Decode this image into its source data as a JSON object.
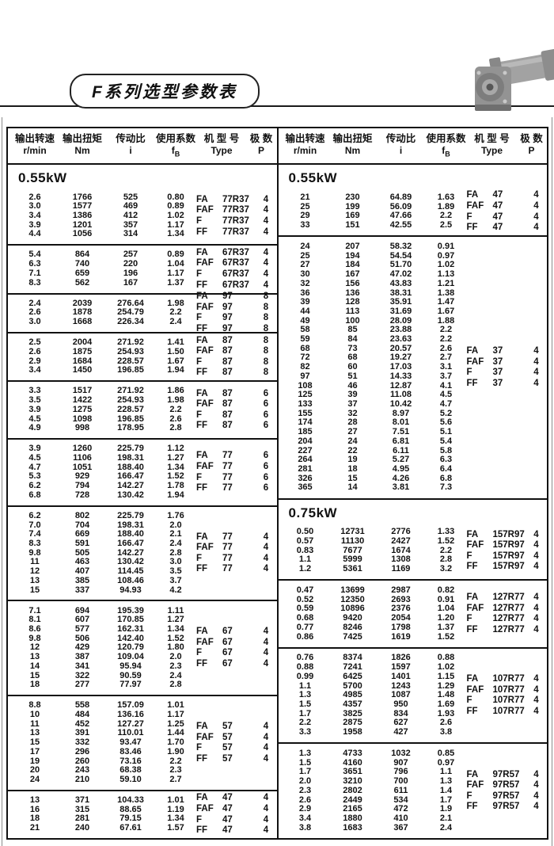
{
  "page": {
    "title": "F系列选型参数表"
  },
  "table": {
    "headers": [
      {
        "zh": "输出转速",
        "unit": "r/min"
      },
      {
        "zh": "输出扭矩",
        "unit": "Nm"
      },
      {
        "zh": "传动比",
        "unit": "i"
      },
      {
        "zh": "使用系数",
        "unit": "f",
        "sub": "B"
      },
      {
        "zh": "机 型 号",
        "unit": "Type"
      },
      {
        "zh": "极 数",
        "unit": "P"
      }
    ],
    "type_prefixes": [
      "FA",
      "FAF",
      "F",
      "FF"
    ],
    "left_column": {
      "sections": [
        {
          "power": "0.55kW",
          "groups": [
            {
              "model": "77R37",
              "poles": "4",
              "rows": [
                [
                  "2.6",
                  "1766",
                  "525",
                  "0.80"
                ],
                [
                  "3.0",
                  "1577",
                  "469",
                  "0.89"
                ],
                [
                  "3.4",
                  "1386",
                  "412",
                  "1.02"
                ],
                [
                  "3.9",
                  "1201",
                  "357",
                  "1.17"
                ],
                [
                  "4.4",
                  "1056",
                  "314",
                  "1.34"
                ]
              ]
            },
            {
              "model": "67R37",
              "poles": "4",
              "rows": [
                [
                  "5.4",
                  "864",
                  "257",
                  "0.89"
                ],
                [
                  "6.3",
                  "740",
                  "220",
                  "1.04"
                ],
                [
                  "7.1",
                  "659",
                  "196",
                  "1.17"
                ],
                [
                  "8.3",
                  "562",
                  "167",
                  "1.37"
                ]
              ]
            },
            {
              "model": "97",
              "poles": "8",
              "rows": [
                [
                  "2.4",
                  "2039",
                  "276.64",
                  "1.98"
                ],
                [
                  "2.6",
                  "1878",
                  "254.79",
                  "2.2"
                ],
                [
                  "3.0",
                  "1668",
                  "226.34",
                  "2.4"
                ]
              ]
            },
            {
              "model": "87",
              "poles": "8",
              "rows": [
                [
                  "2.5",
                  "2004",
                  "271.92",
                  "1.41"
                ],
                [
                  "2.6",
                  "1875",
                  "254.93",
                  "1.50"
                ],
                [
                  "2.9",
                  "1684",
                  "228.57",
                  "1.67"
                ],
                [
                  "3.4",
                  "1450",
                  "196.85",
                  "1.94"
                ]
              ]
            },
            {
              "model": "87",
              "poles": "6",
              "rows": [
                [
                  "3.3",
                  "1517",
                  "271.92",
                  "1.86"
                ],
                [
                  "3.5",
                  "1422",
                  "254.93",
                  "1.98"
                ],
                [
                  "3.9",
                  "1275",
                  "228.57",
                  "2.2"
                ],
                [
                  "4.5",
                  "1098",
                  "196.85",
                  "2.6"
                ],
                [
                  "4.9",
                  "998",
                  "178.95",
                  "2.8"
                ]
              ]
            },
            {
              "model": "77",
              "poles": "6",
              "rows": [
                [
                  "3.9",
                  "1260",
                  "225.79",
                  "1.12"
                ],
                [
                  "4.5",
                  "1106",
                  "198.31",
                  "1.27"
                ],
                [
                  "4.7",
                  "1051",
                  "188.40",
                  "1.34"
                ],
                [
                  "5.3",
                  "929",
                  "166.47",
                  "1.52"
                ],
                [
                  "6.2",
                  "794",
                  "142.27",
                  "1.78"
                ],
                [
                  "6.8",
                  "728",
                  "130.42",
                  "1.94"
                ]
              ]
            },
            {
              "model": "77",
              "poles": "4",
              "rows": [
                [
                  "6.2",
                  "802",
                  "225.79",
                  "1.76"
                ],
                [
                  "7.0",
                  "704",
                  "198.31",
                  "2.0"
                ],
                [
                  "7.4",
                  "669",
                  "188.40",
                  "2.1"
                ],
                [
                  "8.3",
                  "591",
                  "166.47",
                  "2.4"
                ],
                [
                  "9.8",
                  "505",
                  "142.27",
                  "2.8"
                ],
                [
                  "11",
                  "463",
                  "130.42",
                  "3.0"
                ],
                [
                  "12",
                  "407",
                  "114.45",
                  "3.5"
                ],
                [
                  "13",
                  "385",
                  "108.46",
                  "3.7"
                ],
                [
                  "15",
                  "337",
                  "94.93",
                  "4.2"
                ]
              ]
            },
            {
              "model": "67",
              "poles": "4",
              "rows": [
                [
                  "7.1",
                  "694",
                  "195.39",
                  "1.11"
                ],
                [
                  "8.1",
                  "607",
                  "170.85",
                  "1.27"
                ],
                [
                  "8.6",
                  "577",
                  "162.31",
                  "1.34"
                ],
                [
                  "9.8",
                  "506",
                  "142.40",
                  "1.52"
                ],
                [
                  "12",
                  "429",
                  "120.79",
                  "1.80"
                ],
                [
                  "13",
                  "387",
                  "109.04",
                  "2.0"
                ],
                [
                  "14",
                  "341",
                  "95.94",
                  "2.3"
                ],
                [
                  "15",
                  "322",
                  "90.59",
                  "2.4"
                ],
                [
                  "18",
                  "277",
                  "77.97",
                  "2.8"
                ]
              ]
            },
            {
              "model": "57",
              "poles": "4",
              "rows": [
                [
                  "8.8",
                  "558",
                  "157.09",
                  "1.01"
                ],
                [
                  "10",
                  "484",
                  "136.16",
                  "1.17"
                ],
                [
                  "11",
                  "452",
                  "127.27",
                  "1.25"
                ],
                [
                  "13",
                  "391",
                  "110.01",
                  "1.44"
                ],
                [
                  "15",
                  "332",
                  "93.47",
                  "1.70"
                ],
                [
                  "17",
                  "296",
                  "83.46",
                  "1.90"
                ],
                [
                  "19",
                  "260",
                  "73.16",
                  "2.2"
                ],
                [
                  "20",
                  "243",
                  "68.38",
                  "2.3"
                ],
                [
                  "24",
                  "210",
                  "59.10",
                  "2.7"
                ]
              ]
            },
            {
              "model": "47",
              "poles": "4",
              "rows": [
                [
                  "13",
                  "371",
                  "104.33",
                  "1.01"
                ],
                [
                  "16",
                  "315",
                  "88.65",
                  "1.19"
                ],
                [
                  "18",
                  "281",
                  "79.15",
                  "1.34"
                ],
                [
                  "21",
                  "240",
                  "67.61",
                  "1.57"
                ]
              ]
            }
          ]
        }
      ]
    },
    "right_column": {
      "sections": [
        {
          "power": "0.55kW",
          "groups": [
            {
              "model": "47",
              "poles": "4",
              "rows": [
                [
                  "21",
                  "230",
                  "64.89",
                  "1.63"
                ],
                [
                  "25",
                  "199",
                  "56.09",
                  "1.89"
                ],
                [
                  "29",
                  "169",
                  "47.66",
                  "2.2"
                ],
                [
                  "33",
                  "151",
                  "42.55",
                  "2.5"
                ]
              ]
            },
            {
              "model": "37",
              "poles": "4",
              "rows": [
                [
                  "24",
                  "207",
                  "58.32",
                  "0.91"
                ],
                [
                  "25",
                  "194",
                  "54.54",
                  "0.97"
                ],
                [
                  "27",
                  "184",
                  "51.70",
                  "1.02"
                ],
                [
                  "30",
                  "167",
                  "47.02",
                  "1.13"
                ],
                [
                  "32",
                  "156",
                  "43.83",
                  "1.21"
                ],
                [
                  "36",
                  "136",
                  "38.31",
                  "1.38"
                ],
                [
                  "39",
                  "128",
                  "35.91",
                  "1.47"
                ],
                [
                  "44",
                  "113",
                  "31.69",
                  "1.67"
                ],
                [
                  "49",
                  "100",
                  "28.09",
                  "1.88"
                ],
                [
                  "58",
                  "85",
                  "23.88",
                  "2.2"
                ],
                [
                  "59",
                  "84",
                  "23.63",
                  "2.2"
                ],
                [
                  "68",
                  "73",
                  "20.57",
                  "2.6"
                ],
                [
                  "72",
                  "68",
                  "19.27",
                  "2.7"
                ],
                [
                  "82",
                  "60",
                  "17.03",
                  "3.1"
                ],
                [
                  "97",
                  "51",
                  "14.33",
                  "3.7"
                ],
                [
                  "108",
                  "46",
                  "12.87",
                  "4.1"
                ],
                [
                  "125",
                  "39",
                  "11.08",
                  "4.5"
                ],
                [
                  "133",
                  "37",
                  "10.42",
                  "4.7"
                ],
                [
                  "155",
                  "32",
                  "8.97",
                  "5.2"
                ],
                [
                  "174",
                  "28",
                  "8.01",
                  "5.6"
                ],
                [
                  "185",
                  "27",
                  "7.51",
                  "5.1"
                ],
                [
                  "204",
                  "24",
                  "6.81",
                  "5.4"
                ],
                [
                  "227",
                  "22",
                  "6.11",
                  "5.8"
                ],
                [
                  "264",
                  "19",
                  "5.27",
                  "6.3"
                ],
                [
                  "281",
                  "18",
                  "4.95",
                  "6.4"
                ],
                [
                  "326",
                  "15",
                  "4.26",
                  "6.8"
                ],
                [
                  "365",
                  "14",
                  "3.81",
                  "7.3"
                ]
              ]
            }
          ]
        },
        {
          "power": "0.75kW",
          "groups": [
            {
              "model": "157R97",
              "poles": "4",
              "rows": [
                [
                  "0.50",
                  "12731",
                  "2776",
                  "1.33"
                ],
                [
                  "0.57",
                  "11130",
                  "2427",
                  "1.52"
                ],
                [
                  "0.83",
                  "7677",
                  "1674",
                  "2.2"
                ],
                [
                  "1.1",
                  "5999",
                  "1308",
                  "2.8"
                ],
                [
                  "1.2",
                  "5361",
                  "1169",
                  "3.2"
                ]
              ]
            },
            {
              "model": "127R77",
              "poles": "4",
              "rows": [
                [
                  "0.47",
                  "13699",
                  "2987",
                  "0.82"
                ],
                [
                  "0.52",
                  "12350",
                  "2693",
                  "0.91"
                ],
                [
                  "0.59",
                  "10896",
                  "2376",
                  "1.04"
                ],
                [
                  "0.68",
                  "9420",
                  "2054",
                  "1.20"
                ],
                [
                  "0.77",
                  "8246",
                  "1798",
                  "1.37"
                ],
                [
                  "0.86",
                  "7425",
                  "1619",
                  "1.52"
                ]
              ]
            },
            {
              "model": "107R77",
              "poles": "4",
              "rows": [
                [
                  "0.76",
                  "8374",
                  "1826",
                  "0.88"
                ],
                [
                  "0.88",
                  "7241",
                  "1597",
                  "1.02"
                ],
                [
                  "0.99",
                  "6425",
                  "1401",
                  "1.15"
                ],
                [
                  "1.1",
                  "5700",
                  "1243",
                  "1.29"
                ],
                [
                  "1.3",
                  "4985",
                  "1087",
                  "1.48"
                ],
                [
                  "1.5",
                  "4357",
                  "950",
                  "1.69"
                ],
                [
                  "1.7",
                  "3825",
                  "834",
                  "1.93"
                ],
                [
                  "2.2",
                  "2875",
                  "627",
                  "2.6"
                ],
                [
                  "3.3",
                  "1958",
                  "427",
                  "3.8"
                ]
              ]
            },
            {
              "model": "97R57",
              "poles": "4",
              "rows": [
                [
                  "1.3",
                  "4733",
                  "1032",
                  "0.85"
                ],
                [
                  "1.5",
                  "4160",
                  "907",
                  "0.97"
                ],
                [
                  "1.7",
                  "3651",
                  "796",
                  "1.1"
                ],
                [
                  "2.0",
                  "3210",
                  "700",
                  "1.3"
                ],
                [
                  "2.3",
                  "2802",
                  "611",
                  "1.4"
                ],
                [
                  "2.6",
                  "2449",
                  "534",
                  "1.7"
                ],
                [
                  "2.9",
                  "2165",
                  "472",
                  "1.9"
                ],
                [
                  "3.4",
                  "1880",
                  "410",
                  "2.1"
                ],
                [
                  "3.8",
                  "1683",
                  "367",
                  "2.4"
                ]
              ]
            }
          ]
        }
      ]
    }
  }
}
